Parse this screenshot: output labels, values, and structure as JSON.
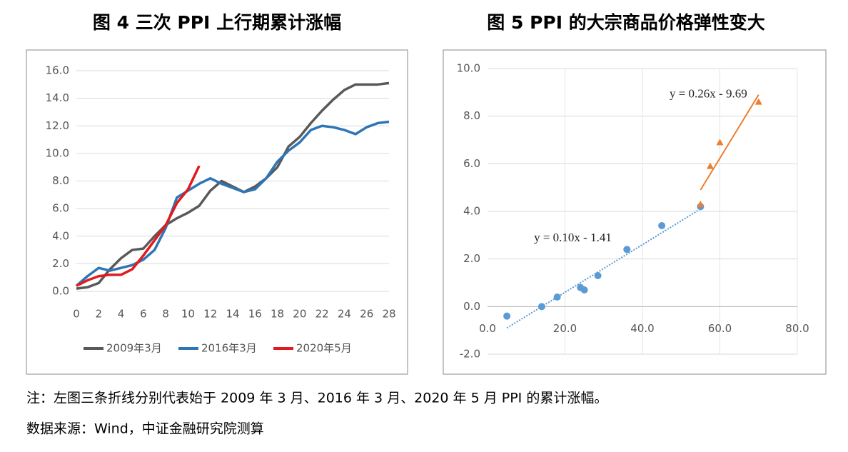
{
  "chart_data": [
    {
      "type": "line",
      "title": "图 4  三次 PPI 上行期累计涨幅",
      "x": [
        0,
        1,
        2,
        3,
        4,
        5,
        6,
        7,
        8,
        9,
        10,
        11,
        12,
        13,
        14,
        15,
        16,
        17,
        18,
        19,
        20,
        21,
        22,
        23,
        24,
        25,
        26,
        27,
        28
      ],
      "series": [
        {
          "name": "2009年3月",
          "color": "#595959",
          "values": [
            0.2,
            0.3,
            0.6,
            1.6,
            2.4,
            3.0,
            3.1,
            4.0,
            4.8,
            5.3,
            5.7,
            6.2,
            7.3,
            8.0,
            7.6,
            7.2,
            7.6,
            8.2,
            9.0,
            10.5,
            11.2,
            12.2,
            13.1,
            13.9,
            14.6,
            15.0,
            15.0,
            15.0,
            15.1
          ]
        },
        {
          "name": "2016年3月",
          "color": "#2e75b6",
          "values": [
            0.4,
            1.1,
            1.7,
            1.5,
            1.7,
            1.9,
            2.3,
            3.0,
            4.6,
            6.8,
            7.3,
            7.8,
            8.2,
            7.8,
            7.5,
            7.2,
            7.4,
            8.2,
            9.4,
            10.2,
            10.8,
            11.7,
            12.0,
            11.9,
            11.7,
            11.4,
            11.9,
            12.2,
            12.3
          ]
        },
        {
          "name": "2020年5月",
          "color": "#e31a1c",
          "values": [
            0.4,
            0.8,
            1.1,
            1.2,
            1.2,
            1.6,
            2.6,
            3.7,
            4.8,
            6.4,
            7.4,
            9.1,
            null,
            null,
            null,
            null,
            null,
            null,
            null,
            null,
            null,
            null,
            null,
            null,
            null,
            null,
            null,
            null,
            null
          ]
        }
      ],
      "xlim": [
        0,
        28
      ],
      "xticks": [
        0,
        2,
        4,
        6,
        8,
        10,
        12,
        14,
        16,
        18,
        20,
        22,
        24,
        26,
        28
      ],
      "ylim": [
        0,
        16
      ],
      "yticks": [
        {
          "value": 0,
          "label": "0.0"
        },
        {
          "value": 2,
          "label": "2.0"
        },
        {
          "value": 4,
          "label": "4.0"
        },
        {
          "value": 6,
          "label": "6.0"
        },
        {
          "value": 8,
          "label": "8.0"
        },
        {
          "value": 10,
          "label": "10.0"
        },
        {
          "value": 12,
          "label": "12.0"
        },
        {
          "value": 14,
          "label": "14.0"
        },
        {
          "value": 16,
          "label": "16.0"
        }
      ],
      "grid": true,
      "legend": "bottom"
    },
    {
      "type": "scatter",
      "title": "图 5 PPI 的大宗商品价格弹性变大",
      "series": [
        {
          "color": "#5b9bd5",
          "marker": "circle",
          "x": [
            5,
            14,
            18,
            24,
            25,
            28.5,
            36,
            45,
            55
          ],
          "values": [
            -0.4,
            0,
            0.4,
            0.8,
            0.7,
            1.3,
            2.4,
            3.4,
            4.2
          ],
          "trend_x": [
            5,
            55
          ],
          "trend_y": [
            -0.9,
            4.1
          ],
          "trend_label": "y = 0.10x - 1.41"
        },
        {
          "color": "#ed7d31",
          "marker": "triangle",
          "x": [
            55,
            57.5,
            60,
            70
          ],
          "values": [
            4.3,
            5.9,
            6.9,
            8.6
          ],
          "trend_x": [
            55,
            70
          ],
          "trend_y": [
            4.9,
            8.9
          ],
          "trend_label": "y = 0.26x - 9.69"
        }
      ],
      "xlim": [
        0,
        80
      ],
      "xticks": [
        {
          "value": 0,
          "label": "0.0"
        },
        {
          "value": 20,
          "label": "20.0"
        },
        {
          "value": 40,
          "label": "40.0"
        },
        {
          "value": 60,
          "label": "60.0"
        },
        {
          "value": 80,
          "label": "80.0"
        }
      ],
      "ylim": [
        -2,
        10
      ],
      "yticks": [
        {
          "value": -2,
          "label": "-2.0"
        },
        {
          "value": 0,
          "label": "0.0"
        },
        {
          "value": 2,
          "label": "2.0"
        },
        {
          "value": 4,
          "label": "4.0"
        },
        {
          "value": 6,
          "label": "6.0"
        },
        {
          "value": 8,
          "label": "8.0"
        },
        {
          "value": 10,
          "label": "10.0"
        }
      ],
      "grid": true
    }
  ],
  "notes": [
    "注：左图三条折线分别代表始于 2009 年 3 月、2016 年 3 月、2020 年 5 月 PPI 的累计涨幅。",
    "数据来源：Wind，中证金融研究院测算"
  ]
}
